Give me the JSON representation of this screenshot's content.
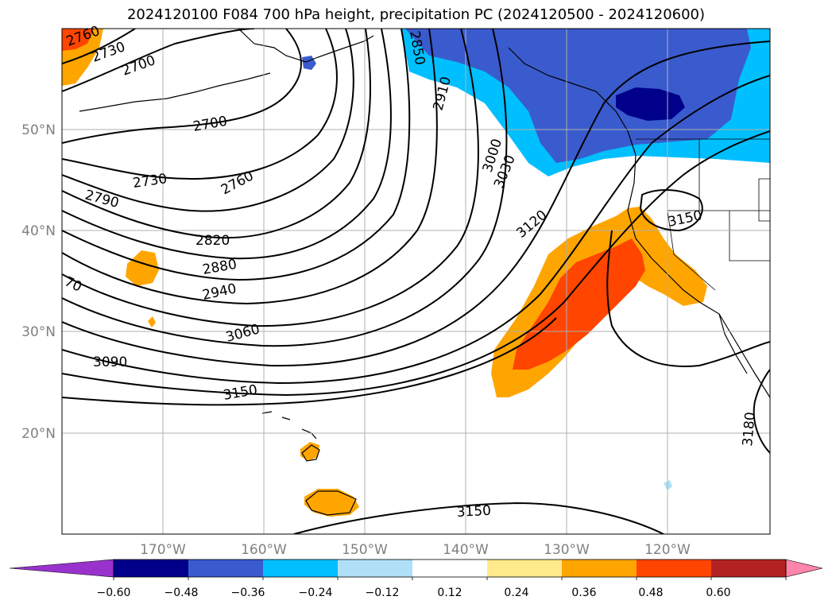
{
  "title": "2024120100 F084 700 hPa height, precipitation PC (2024120500 - 2024120600)",
  "lat_labels": [
    "50°N",
    "40°N",
    "30°N",
    "20°N"
  ],
  "lon_labels": [
    "170°W",
    "160°W",
    "150°W",
    "140°W",
    "130°W",
    "120°W"
  ],
  "contour_labels": [
    "2760",
    "2730",
    "2700",
    "2700",
    "2730",
    "2760",
    "2790",
    "2820",
    "2880",
    "2940",
    "3060",
    "3090",
    "3150",
    "2850",
    "2910",
    "3000",
    "3030",
    "3120",
    "3150",
    "3180",
    "3150",
    "70"
  ],
  "colorbar": {
    "ticks": [
      "−0.60",
      "−0.48",
      "−0.36",
      "−0.24",
      "−0.12",
      "0.12",
      "0.24",
      "0.36",
      "0.48",
      "0.60"
    ],
    "colors": [
      "#9932cc",
      "#00008b",
      "#3a5bcd",
      "#00bfff",
      "#afe0f7",
      "#ffffff",
      "#ffe98a",
      "#ffa500",
      "#ff4500",
      "#b22222",
      "#ff85aa"
    ]
  }
}
